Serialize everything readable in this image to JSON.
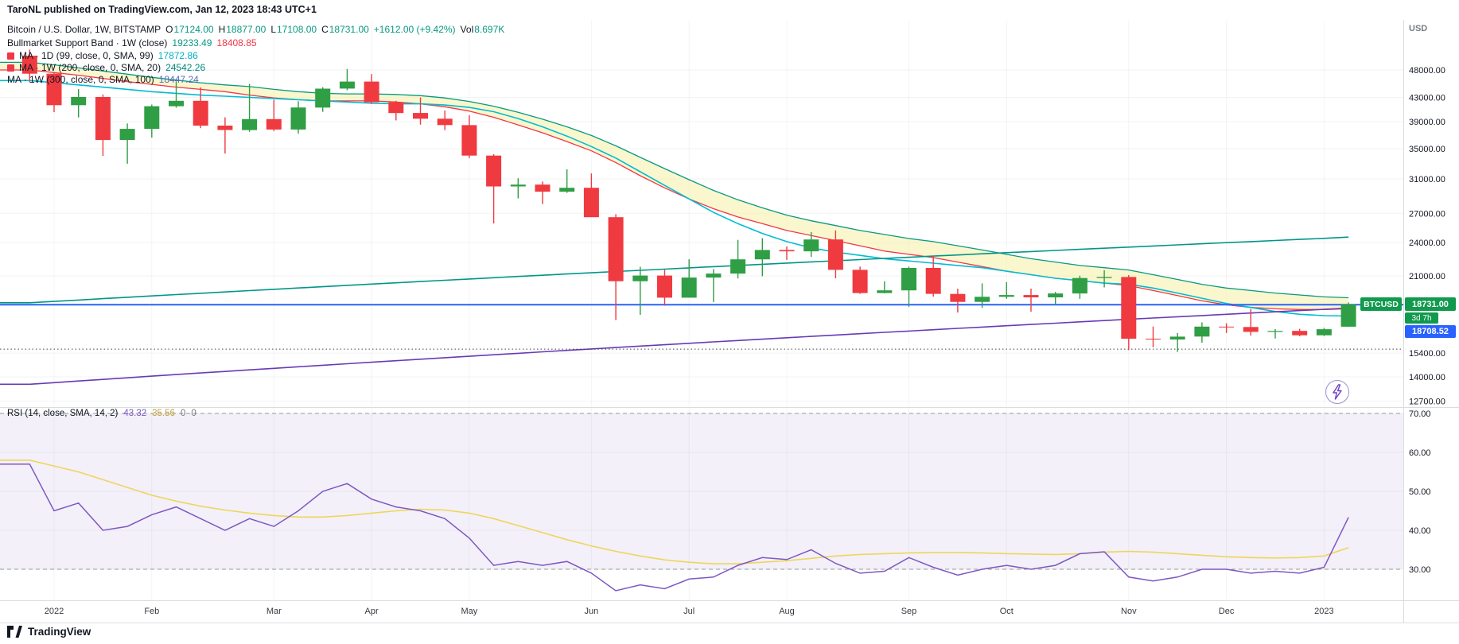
{
  "publisher": {
    "text": "TaroNL published on TradingView.com, Jan 12, 2023 18:43 UTC+1"
  },
  "legend": {
    "symbol_line": {
      "title": "Bitcoin / U.S. Dollar, 1W, BITSTAMP",
      "o_label": "O",
      "o": "17124.00",
      "h_label": "H",
      "h": "18877.00",
      "l_label": "L",
      "l": "17108.00",
      "c_label": "C",
      "c": "18731.00",
      "change": "+1612.00 (+9.42%)",
      "vol_label": "Vol",
      "vol": "8.697K"
    },
    "band_line": {
      "title": "Bullmarket Support Band · 1W (close)",
      "v1": "19233.49",
      "v2": "18408.85"
    },
    "ma1": {
      "title": "MA · 1D (99, close, 0, SMA, 99)",
      "value": "17872.86"
    },
    "ma2": {
      "title": "MA · 1W (200, close, 0, SMA, 20)",
      "value": "24542.26"
    },
    "ma3": {
      "title": "MA · 1W (300, close, 0, SMA, 100)",
      "value": "18447.24"
    }
  },
  "rsi_legend": {
    "title": "RSI (14, close, SMA, 14, 2)",
    "v1": "43.32",
    "v2": "35.56",
    "v3": "0",
    "v4": "0"
  },
  "price_axis": {
    "currency": "USD",
    "ticks": [
      "48000.00",
      "43000.00",
      "39000.00",
      "35000.00",
      "31000.00",
      "27000.00",
      "24000.00",
      "21000.00",
      "15400.00",
      "14000.00",
      "12700.00"
    ],
    "tick_values": [
      48000,
      43000,
      39000,
      35000,
      31000,
      27000,
      24000,
      21000,
      15400,
      14000,
      12700
    ],
    "symbol_badge": {
      "label": "BTCUSD",
      "price": "18731.00",
      "countdown": "3d 7h",
      "bg": "#119a4e"
    },
    "line_badge": {
      "price": "18708.52",
      "bg": "#2962ff"
    }
  },
  "rsi_axis": {
    "ticks": [
      "70.00",
      "60.00",
      "50.00",
      "40.00",
      "30.00"
    ],
    "tick_values": [
      70,
      60,
      50,
      40,
      30
    ]
  },
  "time_axis": {
    "labels": [
      {
        "label": "2022",
        "week": 2
      },
      {
        "label": "Feb",
        "week": 6
      },
      {
        "label": "Mar",
        "week": 11
      },
      {
        "label": "Apr",
        "week": 15
      },
      {
        "label": "May",
        "week": 19
      },
      {
        "label": "Jun",
        "week": 24
      },
      {
        "label": "Jul",
        "week": 28
      },
      {
        "label": "Aug",
        "week": 32
      },
      {
        "label": "Sep",
        "week": 37
      },
      {
        "label": "Oct",
        "week": 41
      },
      {
        "label": "Nov",
        "week": 46
      },
      {
        "label": "Dec",
        "week": 50
      },
      {
        "label": "2023",
        "week": 54
      }
    ]
  },
  "footer": {
    "brand": "TradingView"
  },
  "chart_data": {
    "type": "candlestick",
    "symbol": "BTCUSD",
    "exchange": "BITSTAMP",
    "interval": "1W",
    "price_scale": "log",
    "price_range": [
      12700,
      52500
    ],
    "rsi_range": [
      22,
      71.5
    ],
    "up_color": "#2f9e44",
    "down_color": "#ef3a40",
    "ohlc_last": {
      "open": 17124.0,
      "high": 18877.0,
      "low": 17108.0,
      "close": 18731.0,
      "change": 1612.0,
      "change_pct": 9.42,
      "volume": "8.697K"
    },
    "candles": [
      [
        50822,
        52088,
        45650,
        47286
      ],
      [
        47286,
        47583,
        40517,
        41672
      ],
      [
        41672,
        44447,
        39666,
        43068
      ],
      [
        43068,
        43496,
        34000,
        36235
      ],
      [
        36235,
        38720,
        32950,
        37892
      ],
      [
        37892,
        41772,
        36586,
        41501
      ],
      [
        41501,
        45855,
        41244,
        42412
      ],
      [
        42412,
        44751,
        38000,
        38386
      ],
      [
        38386,
        39683,
        34322,
        37712
      ],
      [
        37712,
        45400,
        37450,
        39407
      ],
      [
        39407,
        42594,
        37570,
        37790
      ],
      [
        37790,
        42325,
        37155,
        41282
      ],
      [
        41282,
        44795,
        40575,
        44538
      ],
      [
        44538,
        48189,
        44245,
        45811
      ],
      [
        45811,
        47212,
        41868,
        42158
      ],
      [
        42158,
        42424,
        39212,
        40382
      ],
      [
        40382,
        42969,
        38536,
        39465
      ],
      [
        39465,
        40795,
        37702,
        38468
      ],
      [
        38468,
        40023,
        33705,
        34038
      ],
      [
        34038,
        34243,
        25919,
        30076
      ],
      [
        30076,
        31073,
        28654,
        30293
      ],
      [
        30293,
        30670,
        28019,
        29443
      ],
      [
        29443,
        32222,
        29301,
        29906
      ],
      [
        29906,
        31693,
        26780,
        26575
      ],
      [
        26575,
        26895,
        17592,
        20553
      ],
      [
        20553,
        21783,
        17958,
        21027
      ],
      [
        21027,
        21520,
        18626,
        19242
      ],
      [
        19242,
        22450,
        19240,
        20860
      ],
      [
        20860,
        21578,
        18910,
        21195
      ],
      [
        21195,
        24263,
        20785,
        22440
      ],
      [
        22440,
        24440,
        20966,
        23303
      ],
      [
        23303,
        23633,
        22400,
        23175
      ],
      [
        23175,
        25047,
        22664,
        24305
      ],
      [
        24305,
        25210,
        20800,
        21515
      ],
      [
        21515,
        21800,
        19540,
        19600
      ],
      [
        19600,
        20550,
        19580,
        19815
      ],
      [
        19815,
        21798,
        18550,
        21680
      ],
      [
        21680,
        22781,
        19320,
        19535
      ],
      [
        19535,
        19950,
        18125,
        18922
      ],
      [
        18922,
        20380,
        18471,
        19311
      ],
      [
        19311,
        20475,
        19155,
        19446
      ],
      [
        19446,
        19955,
        18190,
        19268
      ],
      [
        19268,
        19695,
        18650,
        19571
      ],
      [
        19571,
        21021,
        19157,
        20818
      ],
      [
        20818,
        21480,
        20050,
        20907
      ],
      [
        20907,
        21069,
        15588,
        16320
      ],
      [
        16320,
        17134,
        15767,
        16272
      ],
      [
        16272,
        16689,
        15476,
        16458
      ],
      [
        16458,
        17424,
        16060,
        17130
      ],
      [
        17130,
        17360,
        16700,
        17104
      ],
      [
        17104,
        18387,
        16527,
        16775
      ],
      [
        16775,
        16960,
        16337,
        16837
      ],
      [
        16837,
        16980,
        16480,
        16542
      ],
      [
        16542,
        17041,
        16499,
        16950
      ],
      [
        17124,
        18877,
        17108,
        18731
      ]
    ],
    "series": [
      {
        "id": "bmsb-sma20w",
        "name": "Bullmarket Support Band SMA 20W",
        "color": "#089981",
        "width": 1.3,
        "values": [
          49500,
          49000,
          48400,
          47800,
          47200,
          46600,
          46100,
          45600,
          45200,
          44900,
          44400,
          44000,
          43700,
          43600,
          43600,
          43500,
          43300,
          42900,
          42300,
          41500,
          40500,
          39400,
          38200,
          36900,
          35400,
          33800,
          32300,
          30900,
          29600,
          28500,
          27600,
          26800,
          26200,
          25700,
          25200,
          24800,
          24400,
          24100,
          23700,
          23300,
          22900,
          22500,
          22200,
          21900,
          21700,
          21500,
          21100,
          20700,
          20300,
          20000,
          19800,
          19600,
          19450,
          19300,
          19233
        ]
      },
      {
        "id": "bmsb-ema21w",
        "name": "Bullmarket Support Band EMA 21W",
        "color": "#f23645",
        "width": 1.3,
        "values": [
          48000,
          47500,
          47000,
          46400,
          45800,
          45300,
          44800,
          44400,
          44000,
          43400,
          42900,
          42600,
          42400,
          42400,
          42400,
          42200,
          41900,
          41400,
          40700,
          39700,
          38500,
          37300,
          36000,
          34700,
          33100,
          31400,
          29900,
          28600,
          27500,
          26600,
          25900,
          25200,
          24700,
          24200,
          23700,
          23200,
          22900,
          22600,
          22200,
          21800,
          21400,
          21100,
          20800,
          20600,
          20400,
          20200,
          19800,
          19400,
          19000,
          18700,
          18500,
          18400,
          18350,
          18350,
          18409
        ]
      },
      {
        "id": "ma-99d",
        "name": "MA 99 (1D)",
        "color": "#00bcd4",
        "width": 1.6,
        "values": [
          46000,
          45600,
          45200,
          44800,
          44400,
          44000,
          43700,
          43400,
          43200,
          43000,
          42800,
          42600,
          42400,
          42200,
          42000,
          41900,
          41900,
          41700,
          41300,
          40600,
          39500,
          38200,
          36800,
          35300,
          33700,
          31900,
          30200,
          28600,
          27100,
          25900,
          24900,
          24100,
          23500,
          23100,
          22800,
          22500,
          22300,
          22100,
          21900,
          21700,
          21400,
          21100,
          20800,
          20600,
          20400,
          20300,
          20000,
          19600,
          19200,
          18800,
          18500,
          18200,
          18000,
          17900,
          17873
        ]
      },
      {
        "id": "ma-200w",
        "name": "MA 200 (1W)",
        "color": "#009688",
        "width": 1.6,
        "values": [
          18850,
          18955,
          19060,
          19165,
          19270,
          19375,
          19480,
          19585,
          19690,
          19795,
          19900,
          20005,
          20110,
          20215,
          20320,
          20425,
          20530,
          20635,
          20740,
          20845,
          20950,
          21055,
          21160,
          21265,
          21370,
          21475,
          21580,
          21685,
          21790,
          21895,
          22000,
          22105,
          22210,
          22315,
          22420,
          22525,
          22630,
          22735,
          22840,
          22945,
          23050,
          23155,
          23260,
          23365,
          23470,
          23575,
          23680,
          23785,
          23890,
          23995,
          24100,
          24205,
          24310,
          24415,
          24542
        ]
      },
      {
        "id": "ma-300w",
        "name": "MA 300 (1W)",
        "color": "#673ab7",
        "width": 1.6,
        "values": [
          13590,
          13680,
          13770,
          13860,
          13950,
          14040,
          14130,
          14220,
          14310,
          14400,
          14490,
          14580,
          14670,
          14760,
          14850,
          14940,
          15030,
          15120,
          15210,
          15300,
          15390,
          15480,
          15570,
          15660,
          15750,
          15840,
          15930,
          16020,
          16110,
          16200,
          16290,
          16380,
          16470,
          16560,
          16650,
          16740,
          16830,
          16920,
          17010,
          17100,
          17190,
          17280,
          17370,
          17460,
          17550,
          17640,
          17730,
          17820,
          17910,
          18000,
          18090,
          18180,
          18270,
          18360,
          18447
        ]
      }
    ],
    "hlines": [
      {
        "price": 18708.52,
        "color": "#2962ff",
        "style": "solid",
        "width": 2
      },
      {
        "price": 15650,
        "color": "#454545",
        "style": "dotted",
        "width": 1
      }
    ],
    "rsi": {
      "upper": 70,
      "lower": 30,
      "line_color": "#7e57c2",
      "sma_color": "#eed65a",
      "values": [
        57,
        45,
        47,
        40,
        41,
        44,
        46,
        43,
        40,
        43,
        41,
        45,
        50,
        52,
        48,
        46,
        45,
        43,
        38,
        31,
        32,
        31,
        32,
        29,
        24.5,
        26,
        25,
        27.5,
        28,
        31,
        33,
        32.5,
        35,
        31.5,
        29,
        29.5,
        33,
        30.5,
        28.5,
        30,
        31,
        30,
        31,
        34,
        34.5,
        28,
        27,
        28,
        30,
        30,
        29,
        29.5,
        29,
        30.5,
        43.32
      ],
      "sma": [
        58,
        56.5,
        55,
        53,
        51,
        49,
        47.5,
        46.2,
        45.2,
        44.4,
        43.8,
        43.4,
        43.4,
        43.8,
        44.4,
        45,
        45.4,
        45.2,
        44.4,
        43,
        41.2,
        39.4,
        37.6,
        36,
        34.6,
        33.4,
        32.4,
        31.8,
        31.4,
        31.4,
        31.8,
        32.2,
        32.8,
        33.4,
        33.8,
        34,
        34.2,
        34.3,
        34.3,
        34.2,
        34,
        33.9,
        33.8,
        34,
        34.4,
        34.6,
        34.4,
        34,
        33.6,
        33.2,
        33,
        32.9,
        33,
        33.4,
        35.56
      ]
    }
  }
}
